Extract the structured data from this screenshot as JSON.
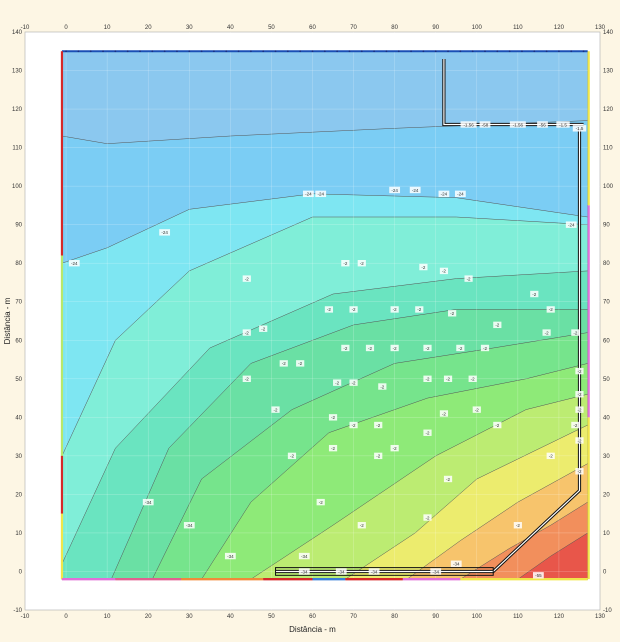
{
  "chart_data": {
    "type": "contour",
    "title": "",
    "xlabel": "Distância - m",
    "ylabel": "Distância - m",
    "xlim": [
      -10,
      130
    ],
    "ylim": [
      -10,
      140
    ],
    "x_ticks": [
      -10,
      0,
      10,
      20,
      30,
      40,
      50,
      60,
      70,
      80,
      90,
      100,
      110,
      120,
      130
    ],
    "y_ticks": [
      -10,
      0,
      10,
      20,
      30,
      40,
      50,
      60,
      70,
      80,
      90,
      100,
      110,
      120,
      130,
      140
    ],
    "x_tick_labels": [
      "-10",
      "0",
      "10",
      "20",
      "30",
      "40",
      "50",
      "60",
      "70",
      "80",
      "90",
      "100",
      "110",
      "120",
      "130"
    ],
    "y_tick_labels": [
      "-10",
      "0",
      "10",
      "20",
      "30",
      "40",
      "50",
      "60",
      "70",
      "80",
      "90",
      "100",
      "110",
      "120",
      "130",
      "140"
    ],
    "domain": {
      "x": [
        -1,
        127
      ],
      "y": [
        -2,
        135
      ]
    },
    "bands": [
      {
        "color": "#e8564a",
        "top": [
          [
            110,
            -2
          ],
          [
            118,
            4
          ],
          [
            127,
            10
          ]
        ]
      },
      {
        "color": "#f28f5c",
        "top": [
          [
            96,
            -2
          ],
          [
            108,
            6
          ],
          [
            118,
            12
          ],
          [
            127,
            18
          ]
        ]
      },
      {
        "color": "#f7c46c",
        "top": [
          [
            83,
            -2
          ],
          [
            96,
            8
          ],
          [
            110,
            18
          ],
          [
            127,
            28
          ]
        ]
      },
      {
        "color": "#ecec6e",
        "top": [
          [
            68,
            -2
          ],
          [
            85,
            10
          ],
          [
            100,
            24
          ],
          [
            127,
            38
          ]
        ]
      },
      {
        "color": "#bcec72",
        "top": [
          [
            45,
            -2
          ],
          [
            65,
            12
          ],
          [
            90,
            30
          ],
          [
            112,
            42
          ],
          [
            127,
            46
          ]
        ]
      },
      {
        "color": "#8eea78",
        "top": [
          [
            33,
            -2
          ],
          [
            45,
            18
          ],
          [
            64,
            36
          ],
          [
            88,
            45
          ],
          [
            112,
            50
          ],
          [
            127,
            54
          ]
        ]
      },
      {
        "color": "#76e48c",
        "top": [
          [
            21,
            -2
          ],
          [
            33,
            24
          ],
          [
            55,
            42
          ],
          [
            80,
            54
          ],
          [
            104,
            58
          ],
          [
            127,
            62
          ]
        ]
      },
      {
        "color": "#6ae0a4",
        "top": [
          [
            11,
            -2
          ],
          [
            25,
            32
          ],
          [
            45,
            54
          ],
          [
            70,
            64
          ],
          [
            95,
            68
          ],
          [
            127,
            68
          ]
        ]
      },
      {
        "color": "#6ae4c0",
        "top": [
          [
            -1,
            2
          ],
          [
            12,
            32
          ],
          [
            35,
            58
          ],
          [
            65,
            72
          ],
          [
            95,
            76
          ],
          [
            127,
            78
          ]
        ]
      },
      {
        "color": "#80eed8",
        "top": [
          [
            -1,
            30
          ],
          [
            12,
            60
          ],
          [
            30,
            78
          ],
          [
            60,
            92
          ],
          [
            95,
            92
          ],
          [
            127,
            90
          ]
        ]
      },
      {
        "color": "#7ee6f2",
        "top": [
          [
            -1,
            80
          ],
          [
            10,
            84
          ],
          [
            30,
            94
          ],
          [
            60,
            98
          ],
          [
            95,
            97
          ],
          [
            127,
            92
          ]
        ]
      },
      {
        "color": "#7bcdf4",
        "top": [
          [
            -1,
            113
          ],
          [
            10,
            111
          ],
          [
            40,
            113
          ],
          [
            80,
            115
          ],
          [
            127,
            117
          ]
        ]
      },
      {
        "color": "#8bc8ef",
        "top": [
          [
            -1,
            135
          ],
          [
            127,
            135
          ]
        ]
      }
    ],
    "contour_labels": [
      {
        "x": 75,
        "y": 0,
        "text": "-34"
      },
      {
        "x": 90,
        "y": 0,
        "text": "-34"
      },
      {
        "x": 67,
        "y": 0,
        "text": "-34"
      },
      {
        "x": 58,
        "y": 0,
        "text": "-34"
      },
      {
        "x": 115,
        "y": -1,
        "text": "-55"
      },
      {
        "x": 95,
        "y": 2,
        "text": "-34"
      },
      {
        "x": 58,
        "y": 4,
        "text": "-34"
      },
      {
        "x": 40,
        "y": 4,
        "text": "-34"
      },
      {
        "x": 30,
        "y": 12,
        "text": "-34"
      },
      {
        "x": 20,
        "y": 18,
        "text": "-34"
      },
      {
        "x": 62,
        "y": 18,
        "text": "-2"
      },
      {
        "x": 72,
        "y": 12,
        "text": "-2"
      },
      {
        "x": 88,
        "y": 14,
        "text": "-2"
      },
      {
        "x": 93,
        "y": 24,
        "text": "-2"
      },
      {
        "x": 110,
        "y": 12,
        "text": "-2"
      },
      {
        "x": 55,
        "y": 30,
        "text": "-2"
      },
      {
        "x": 65,
        "y": 32,
        "text": "-2"
      },
      {
        "x": 76,
        "y": 30,
        "text": "-2"
      },
      {
        "x": 80,
        "y": 32,
        "text": "-2"
      },
      {
        "x": 88,
        "y": 36,
        "text": "-2"
      },
      {
        "x": 105,
        "y": 38,
        "text": "-2"
      },
      {
        "x": 118,
        "y": 30,
        "text": "-2"
      },
      {
        "x": 124,
        "y": 38,
        "text": "-2"
      },
      {
        "x": 65,
        "y": 40,
        "text": "-2"
      },
      {
        "x": 70,
        "y": 38,
        "text": "-2"
      },
      {
        "x": 76,
        "y": 38,
        "text": "-2"
      },
      {
        "x": 51,
        "y": 42,
        "text": "-2"
      },
      {
        "x": 92,
        "y": 41,
        "text": "-2"
      },
      {
        "x": 100,
        "y": 42,
        "text": "-2"
      },
      {
        "x": 66,
        "y": 49,
        "text": "-2"
      },
      {
        "x": 70,
        "y": 49,
        "text": "-2"
      },
      {
        "x": 77,
        "y": 48,
        "text": "-2"
      },
      {
        "x": 44,
        "y": 50,
        "text": "-2"
      },
      {
        "x": 53,
        "y": 54,
        "text": "-2"
      },
      {
        "x": 57,
        "y": 54,
        "text": "-2"
      },
      {
        "x": 88,
        "y": 50,
        "text": "-2"
      },
      {
        "x": 93,
        "y": 50,
        "text": "-2"
      },
      {
        "x": 99,
        "y": 50,
        "text": "-2"
      },
      {
        "x": 68,
        "y": 58,
        "text": "-2"
      },
      {
        "x": 74,
        "y": 58,
        "text": "-2"
      },
      {
        "x": 80,
        "y": 58,
        "text": "-2"
      },
      {
        "x": 88,
        "y": 58,
        "text": "-2"
      },
      {
        "x": 96,
        "y": 58,
        "text": "-2"
      },
      {
        "x": 102,
        "y": 58,
        "text": "-2"
      },
      {
        "x": 44,
        "y": 62,
        "text": "-2"
      },
      {
        "x": 48,
        "y": 63,
        "text": "-2"
      },
      {
        "x": 64,
        "y": 68,
        "text": "-2"
      },
      {
        "x": 70,
        "y": 68,
        "text": "-2"
      },
      {
        "x": 80,
        "y": 68,
        "text": "-2"
      },
      {
        "x": 86,
        "y": 68,
        "text": "-2"
      },
      {
        "x": 94,
        "y": 67,
        "text": "-2"
      },
      {
        "x": 105,
        "y": 64,
        "text": "-2"
      },
      {
        "x": 117,
        "y": 62,
        "text": "-2"
      },
      {
        "x": 118,
        "y": 68,
        "text": "-2"
      },
      {
        "x": 124,
        "y": 62,
        "text": "-2"
      },
      {
        "x": 44,
        "y": 76,
        "text": "-2"
      },
      {
        "x": 68,
        "y": 80,
        "text": "-2"
      },
      {
        "x": 72,
        "y": 80,
        "text": "-2"
      },
      {
        "x": 87,
        "y": 79,
        "text": "-2"
      },
      {
        "x": 92,
        "y": 78,
        "text": "-2"
      },
      {
        "x": 98,
        "y": 76,
        "text": "-2"
      },
      {
        "x": 114,
        "y": 72,
        "text": "-2"
      },
      {
        "x": 2,
        "y": 80,
        "text": "-24"
      },
      {
        "x": 24,
        "y": 88,
        "text": "-24"
      },
      {
        "x": 59,
        "y": 98,
        "text": "-24"
      },
      {
        "x": 62,
        "y": 98,
        "text": "-24"
      },
      {
        "x": 80,
        "y": 99,
        "text": "-24"
      },
      {
        "x": 85,
        "y": 99,
        "text": "-24"
      },
      {
        "x": 92,
        "y": 98,
        "text": "-24"
      },
      {
        "x": 96,
        "y": 98,
        "text": "-24"
      },
      {
        "x": 123,
        "y": 90,
        "text": "-24"
      },
      {
        "x": 98,
        "y": 116,
        "text": "-1.56"
      },
      {
        "x": 102,
        "y": 116,
        "text": "-58"
      },
      {
        "x": 110,
        "y": 116,
        "text": "-1.56"
      },
      {
        "x": 116,
        "y": 116,
        "text": "-56"
      },
      {
        "x": 121,
        "y": 116,
        "text": "-1.5"
      },
      {
        "x": 125,
        "y": 115,
        "text": "-1.5"
      },
      {
        "x": 125,
        "y": 52,
        "text": "-2"
      },
      {
        "x": 125,
        "y": 46,
        "text": "-2"
      },
      {
        "x": 125,
        "y": 42,
        "text": "-2"
      },
      {
        "x": 125,
        "y": 34,
        "text": "-2"
      },
      {
        "x": 125,
        "y": 26,
        "text": "-2"
      }
    ]
  }
}
